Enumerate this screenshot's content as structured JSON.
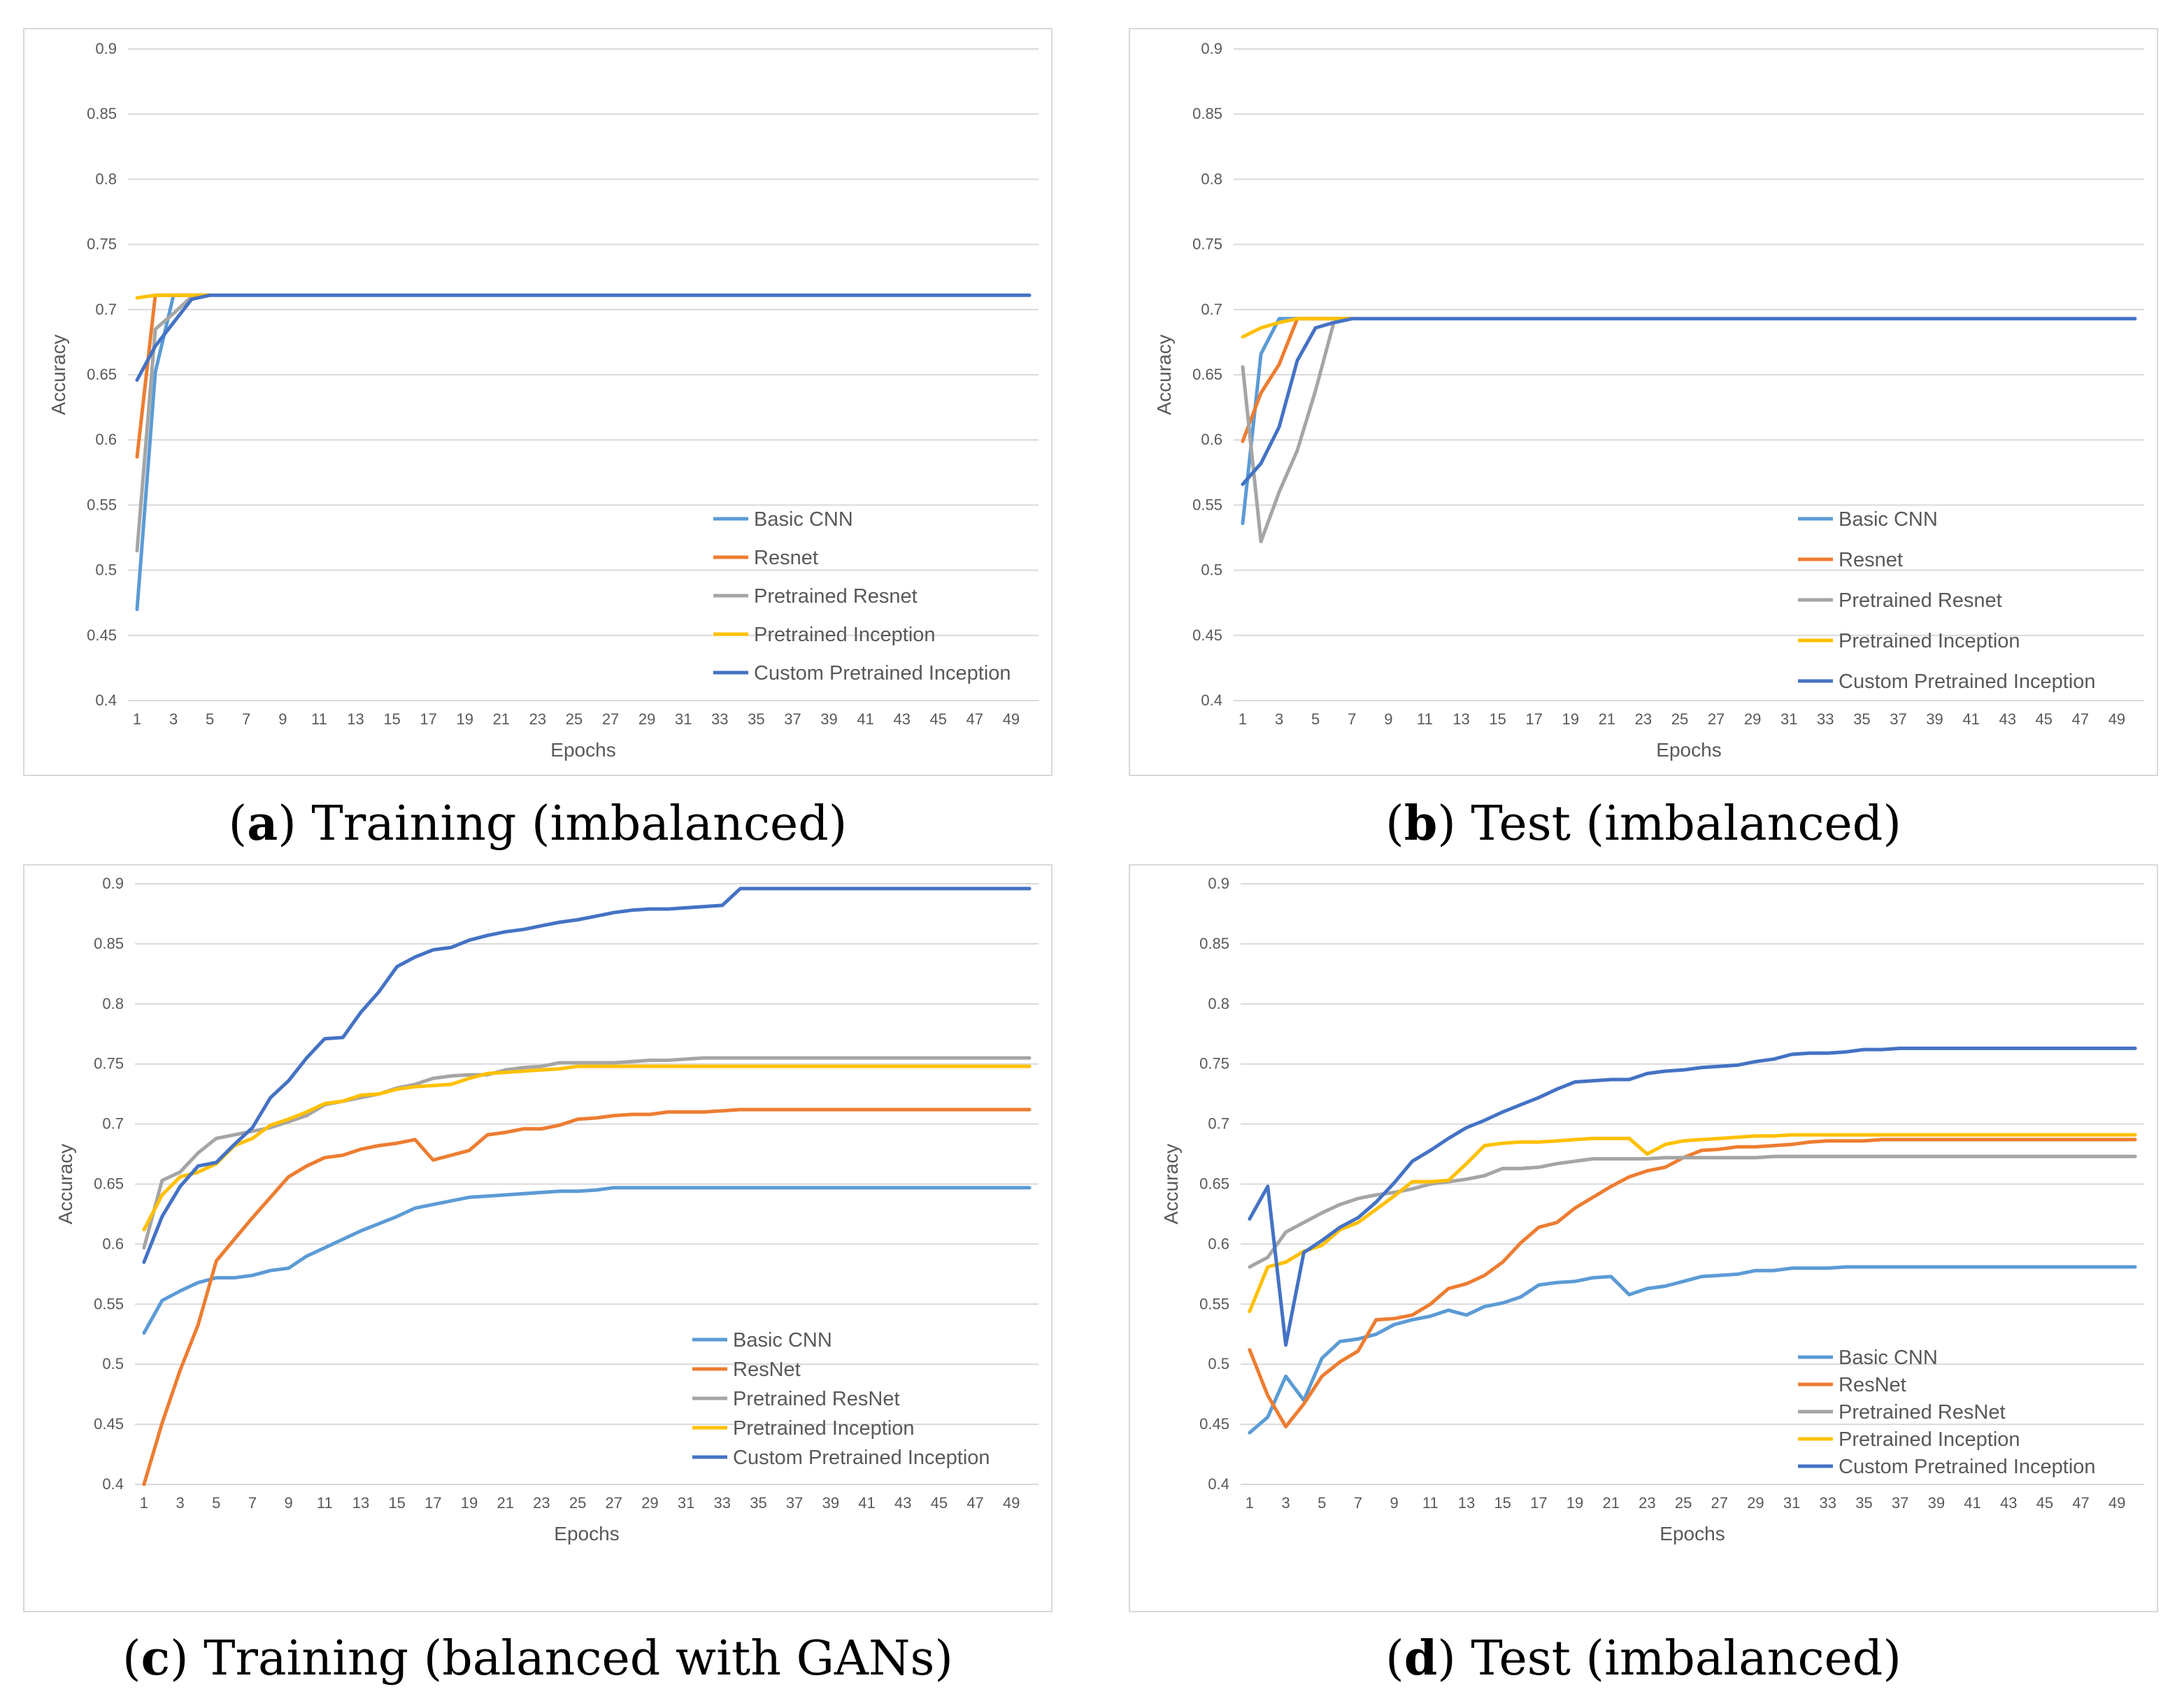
{
  "chart_data": [
    {
      "id": "a",
      "type": "line",
      "caption_letter": "a",
      "caption_text": "Training (imbalanced)",
      "xlabel": "Epochs",
      "ylabel": "Accuracy",
      "ylim": [
        0.4,
        0.9
      ],
      "yticks": [
        "0.4",
        "0.45",
        "0.5",
        "0.55",
        "0.6",
        "0.65",
        "0.7",
        "0.75",
        "0.8",
        "0.85",
        "0.9"
      ],
      "xticks": [
        "1",
        "3",
        "5",
        "7",
        "9",
        "11",
        "13",
        "15",
        "17",
        "19",
        "21",
        "23",
        "25",
        "27",
        "29",
        "31",
        "33",
        "35",
        "37",
        "39",
        "41",
        "43",
        "45",
        "47",
        "49"
      ],
      "grid": true,
      "legend_position": "bottom-right",
      "series": [
        {
          "name": "Basic CNN",
          "color": "#5b9bd5",
          "values": [
            0.47,
            0.652,
            0.711,
            0.711,
            0.711
          ]
        },
        {
          "name": "Resnet",
          "color": "#ed7d31",
          "values": [
            0.587,
            0.711,
            0.711,
            0.711,
            0.711
          ]
        },
        {
          "name": "Pretrained Resnet",
          "color": "#a5a5a5",
          "values": [
            0.515,
            0.685,
            0.697,
            0.71,
            0.711
          ]
        },
        {
          "name": "Pretrained Inception",
          "color": "#ffc000",
          "values": [
            0.709,
            0.711,
            0.711,
            0.711,
            0.711
          ]
        },
        {
          "name": "Custom Pretrained Inception",
          "color": "#4472c4",
          "values": [
            0.646,
            0.672,
            0.69,
            0.708,
            0.711
          ],
          "extend_to": 50
        }
      ]
    },
    {
      "id": "b",
      "type": "line",
      "caption_letter": "b",
      "caption_text": "Test (imbalanced)",
      "xlabel": "Epochs",
      "ylabel": "Accuracy",
      "ylim": [
        0.4,
        0.9
      ],
      "yticks": [
        "0.4",
        "0.45",
        "0.5",
        "0.55",
        "0.6",
        "0.65",
        "0.7",
        "0.75",
        "0.8",
        "0.85",
        "0.9"
      ],
      "xticks": [
        "1",
        "3",
        "5",
        "7",
        "9",
        "11",
        "13",
        "15",
        "17",
        "19",
        "21",
        "23",
        "25",
        "27",
        "29",
        "31",
        "33",
        "35",
        "37",
        "39",
        "41",
        "43",
        "45",
        "47",
        "49"
      ],
      "grid": true,
      "legend_position": "bottom-right",
      "series": [
        {
          "name": "Basic CNN",
          "color": "#5b9bd5",
          "values": [
            0.536,
            0.666,
            0.693,
            0.693,
            0.693,
            0.693,
            0.693
          ]
        },
        {
          "name": "Resnet",
          "color": "#ed7d31",
          "values": [
            0.599,
            0.636,
            0.658,
            0.693,
            0.693,
            0.693,
            0.693
          ]
        },
        {
          "name": "Pretrained Resnet",
          "color": "#a5a5a5",
          "values": [
            0.656,
            0.522,
            0.56,
            0.592,
            0.638,
            0.69,
            0.693
          ]
        },
        {
          "name": "Pretrained Inception",
          "color": "#ffc000",
          "values": [
            0.679,
            0.686,
            0.69,
            0.693,
            0.693,
            0.693,
            0.693
          ]
        },
        {
          "name": "Custom Pretrained Inception",
          "color": "#4472c4",
          "values": [
            0.566,
            0.582,
            0.61,
            0.661,
            0.686,
            0.69,
            0.693
          ],
          "extend_to": 50
        }
      ]
    },
    {
      "id": "c",
      "type": "line",
      "caption_letter": "c",
      "caption_text": "Training (balanced with GANs)",
      "xlabel": "Epochs",
      "ylabel": "Accuracy",
      "ylim": [
        0.4,
        0.9
      ],
      "yticks": [
        "0.4",
        "0.45",
        "0.5",
        "0.55",
        "0.6",
        "0.65",
        "0.7",
        "0.75",
        "0.8",
        "0.85",
        "0.9"
      ],
      "xticks": [
        "1",
        "3",
        "5",
        "7",
        "9",
        "11",
        "13",
        "15",
        "17",
        "19",
        "21",
        "23",
        "25",
        "27",
        "29",
        "31",
        "33",
        "35",
        "37",
        "39",
        "41",
        "43",
        "45",
        "47",
        "49"
      ],
      "grid": true,
      "legend_position": "bottom-right",
      "series": [
        {
          "name": "Basic CNN",
          "color": "#5b9bd5",
          "values": [
            0.526,
            0.553,
            0.561,
            0.568,
            0.572,
            0.572,
            0.574,
            0.578,
            0.58,
            0.59,
            0.597,
            0.604,
            0.611,
            0.617,
            0.623,
            0.63,
            0.633,
            0.636,
            0.639,
            0.64,
            0.641,
            0.642,
            0.643,
            0.644,
            0.644,
            0.645,
            0.647,
            0.647,
            0.647,
            0.647,
            0.647,
            0.647,
            0.647,
            0.647,
            0.647,
            0.647,
            0.647,
            0.647,
            0.647,
            0.647,
            0.647,
            0.647,
            0.647,
            0.647,
            0.647,
            0.647,
            0.647,
            0.647,
            0.647,
            0.647
          ]
        },
        {
          "name": "ResNet",
          "color": "#ed7d31",
          "values": [
            0.4,
            0.451,
            0.495,
            0.533,
            0.586,
            0.604,
            0.622,
            0.639,
            0.656,
            0.665,
            0.672,
            0.674,
            0.679,
            0.682,
            0.684,
            0.687,
            0.67,
            0.674,
            0.678,
            0.691,
            0.693,
            0.696,
            0.696,
            0.699,
            0.704,
            0.705,
            0.707,
            0.708,
            0.708,
            0.71,
            0.71,
            0.71,
            0.711,
            0.712,
            0.712,
            0.712,
            0.712,
            0.712,
            0.712,
            0.712,
            0.712,
            0.712,
            0.712,
            0.712,
            0.712,
            0.712,
            0.712,
            0.712,
            0.712,
            0.712
          ]
        },
        {
          "name": "Pretrained ResNet",
          "color": "#a5a5a5",
          "values": [
            0.597,
            0.653,
            0.66,
            0.676,
            0.688,
            0.691,
            0.694,
            0.697,
            0.702,
            0.707,
            0.716,
            0.719,
            0.722,
            0.725,
            0.73,
            0.733,
            0.738,
            0.74,
            0.741,
            0.741,
            0.745,
            0.747,
            0.748,
            0.751,
            0.751,
            0.751,
            0.751,
            0.752,
            0.753,
            0.753,
            0.754,
            0.755,
            0.755,
            0.755,
            0.755,
            0.755,
            0.755,
            0.755,
            0.755,
            0.755,
            0.755,
            0.755,
            0.755,
            0.755,
            0.755,
            0.755,
            0.755,
            0.755,
            0.755,
            0.755
          ]
        },
        {
          "name": "Pretrained Inception",
          "color": "#ffc000",
          "values": [
            0.612,
            0.641,
            0.656,
            0.66,
            0.667,
            0.682,
            0.688,
            0.699,
            0.704,
            0.71,
            0.717,
            0.719,
            0.724,
            0.725,
            0.729,
            0.731,
            0.732,
            0.733,
            0.738,
            0.742,
            0.743,
            0.744,
            0.745,
            0.746,
            0.748,
            0.748,
            0.748,
            0.748,
            0.748,
            0.748,
            0.748,
            0.748,
            0.748,
            0.748,
            0.748,
            0.748,
            0.748,
            0.748,
            0.748,
            0.748,
            0.748,
            0.748,
            0.748,
            0.748,
            0.748,
            0.748,
            0.748,
            0.748,
            0.748,
            0.748
          ]
        },
        {
          "name": "Custom Pretrained Inception",
          "color": "#4472c4",
          "values": [
            0.585,
            0.623,
            0.648,
            0.665,
            0.668,
            0.683,
            0.697,
            0.722,
            0.736,
            0.755,
            0.771,
            0.772,
            0.793,
            0.81,
            0.831,
            0.839,
            0.845,
            0.847,
            0.853,
            0.857,
            0.86,
            0.862,
            0.865,
            0.868,
            0.87,
            0.873,
            0.876,
            0.878,
            0.879,
            0.879,
            0.88,
            0.881,
            0.882,
            0.896,
            0.896,
            0.896,
            0.896,
            0.896,
            0.896,
            0.896,
            0.896,
            0.896,
            0.896,
            0.896,
            0.896,
            0.896,
            0.896,
            0.896,
            0.896,
            0.896
          ]
        }
      ]
    },
    {
      "id": "d",
      "type": "line",
      "caption_letter": "d",
      "caption_text": "Test (imbalanced)",
      "xlabel": "Epochs",
      "ylabel": "Accuracy",
      "ylim": [
        0.4,
        0.9
      ],
      "yticks": [
        "0.4",
        "0.45",
        "0.5",
        "0.55",
        "0.6",
        "0.65",
        "0.7",
        "0.75",
        "0.8",
        "0.85",
        "0.9"
      ],
      "xticks": [
        "1",
        "3",
        "5",
        "7",
        "9",
        "11",
        "13",
        "15",
        "17",
        "19",
        "21",
        "23",
        "25",
        "27",
        "29",
        "31",
        "33",
        "35",
        "37",
        "39",
        "41",
        "43",
        "45",
        "47",
        "49"
      ],
      "grid": true,
      "legend_position": "bottom-right",
      "series": [
        {
          "name": "Basic CNN",
          "color": "#5b9bd5",
          "values": [
            0.443,
            0.456,
            0.49,
            0.47,
            0.505,
            0.519,
            0.521,
            0.525,
            0.533,
            0.537,
            0.54,
            0.545,
            0.541,
            0.548,
            0.551,
            0.556,
            0.566,
            0.568,
            0.569,
            0.572,
            0.573,
            0.558,
            0.563,
            0.565,
            0.569,
            0.573,
            0.574,
            0.575,
            0.578,
            0.578,
            0.58,
            0.58,
            0.58,
            0.581,
            0.581,
            0.581,
            0.581,
            0.581,
            0.581,
            0.581,
            0.581,
            0.581,
            0.581,
            0.581,
            0.581,
            0.581,
            0.581,
            0.581,
            0.581,
            0.581
          ]
        },
        {
          "name": "ResNet",
          "color": "#ed7d31",
          "values": [
            0.512,
            0.474,
            0.448,
            0.467,
            0.49,
            0.502,
            0.511,
            0.537,
            0.538,
            0.541,
            0.55,
            0.563,
            0.567,
            0.574,
            0.585,
            0.601,
            0.614,
            0.618,
            0.63,
            0.639,
            0.648,
            0.656,
            0.661,
            0.664,
            0.672,
            0.678,
            0.679,
            0.681,
            0.681,
            0.682,
            0.683,
            0.685,
            0.686,
            0.686,
            0.686,
            0.687,
            0.687,
            0.687,
            0.687,
            0.687,
            0.687,
            0.687,
            0.687,
            0.687,
            0.687,
            0.687,
            0.687,
            0.687,
            0.687,
            0.687
          ]
        },
        {
          "name": "Pretrained ResNet",
          "color": "#a5a5a5",
          "values": [
            0.581,
            0.589,
            0.61,
            0.618,
            0.626,
            0.633,
            0.638,
            0.641,
            0.643,
            0.646,
            0.65,
            0.652,
            0.654,
            0.657,
            0.663,
            0.663,
            0.664,
            0.667,
            0.669,
            0.671,
            0.671,
            0.671,
            0.671,
            0.672,
            0.672,
            0.672,
            0.672,
            0.672,
            0.672,
            0.673,
            0.673,
            0.673,
            0.673,
            0.673,
            0.673,
            0.673,
            0.673,
            0.673,
            0.673,
            0.673,
            0.673,
            0.673,
            0.673,
            0.673,
            0.673,
            0.673,
            0.673,
            0.673,
            0.673,
            0.673
          ]
        },
        {
          "name": "Pretrained Inception",
          "color": "#ffc000",
          "values": [
            0.544,
            0.581,
            0.585,
            0.594,
            0.599,
            0.612,
            0.618,
            0.629,
            0.64,
            0.652,
            0.652,
            0.653,
            0.667,
            0.682,
            0.684,
            0.685,
            0.685,
            0.686,
            0.687,
            0.688,
            0.688,
            0.688,
            0.675,
            0.683,
            0.686,
            0.687,
            0.688,
            0.689,
            0.69,
            0.69,
            0.691,
            0.691,
            0.691,
            0.691,
            0.691,
            0.691,
            0.691,
            0.691,
            0.691,
            0.691,
            0.691,
            0.691,
            0.691,
            0.691,
            0.691,
            0.691,
            0.691,
            0.691,
            0.691,
            0.691
          ]
        },
        {
          "name": "Custom Pretrained Inception",
          "color": "#4472c4",
          "values": [
            0.621,
            0.648,
            0.516,
            0.593,
            0.603,
            0.614,
            0.622,
            0.635,
            0.651,
            0.669,
            0.678,
            0.688,
            0.697,
            0.703,
            0.71,
            0.716,
            0.722,
            0.729,
            0.735,
            0.736,
            0.737,
            0.737,
            0.742,
            0.744,
            0.745,
            0.747,
            0.748,
            0.749,
            0.752,
            0.754,
            0.758,
            0.759,
            0.759,
            0.76,
            0.762,
            0.762,
            0.763,
            0.763,
            0.763,
            0.763,
            0.763,
            0.763,
            0.763,
            0.763,
            0.763,
            0.763,
            0.763,
            0.763,
            0.763,
            0.763
          ]
        }
      ]
    }
  ]
}
